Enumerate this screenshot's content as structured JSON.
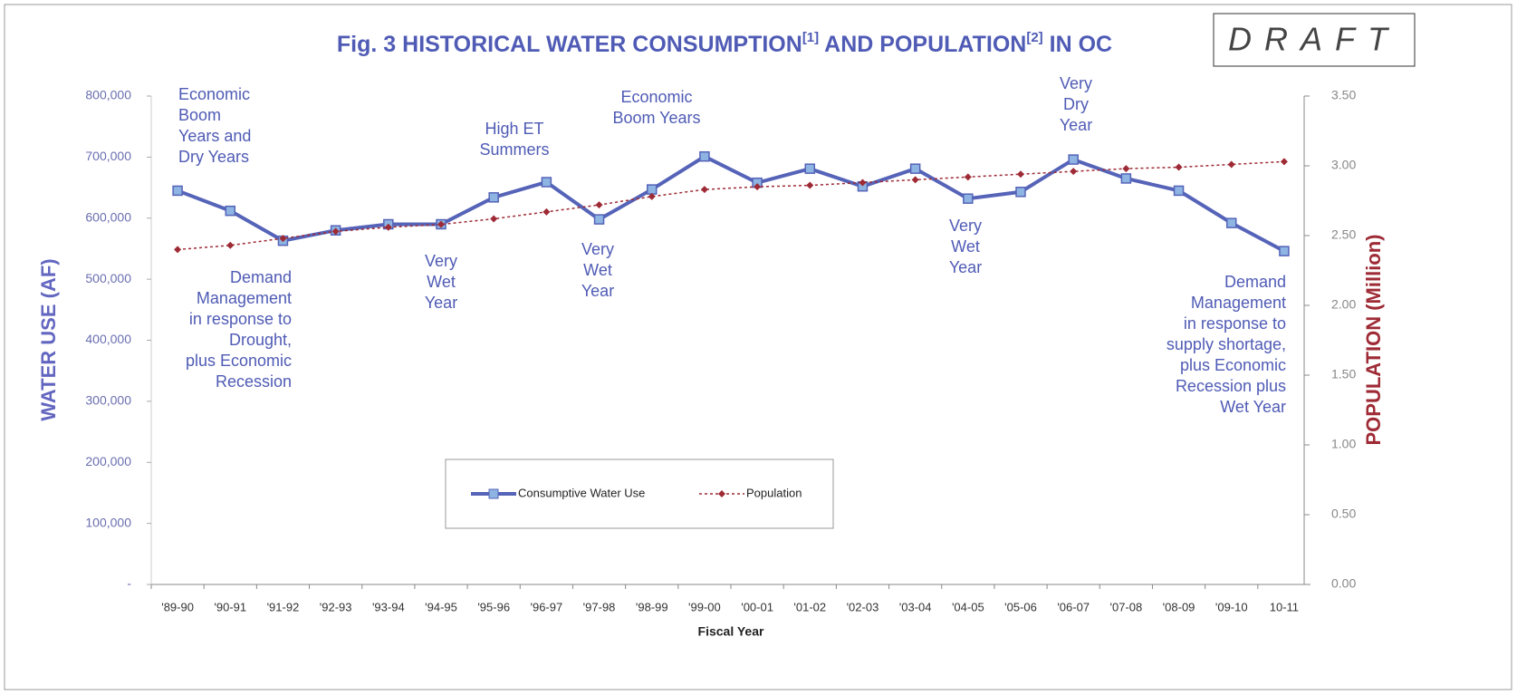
{
  "chart_data": {
    "type": "line",
    "title_parts": [
      "Fig. 3  HISTORICAL WATER CONSUMPTION",
      "[1]",
      " AND POPULATION",
      "[2]",
      " IN OC"
    ],
    "stamp": "DRAFT",
    "x_label": "Fiscal Year",
    "y_label": "WATER USE (AF)",
    "y2_label": "POPULATION (Million)",
    "categories": [
      "'89-90",
      "'90-91",
      "'91-92",
      "'92-93",
      "'93-94",
      "'94-95",
      "'95-96",
      "'96-97",
      "'97-98",
      "'98-99",
      "'99-00",
      "'00-01",
      "'01-02",
      "'02-03",
      "'03-04",
      "'04-05",
      "'05-06",
      "'06-07",
      "'07-08",
      "'08-09",
      "'09-10",
      "10-11"
    ],
    "series": [
      {
        "name": "Consumptive Water Use",
        "color": "#5563b8",
        "marker_color": "#8db4e2",
        "values": [
          645000,
          612000,
          563000,
          580000,
          590000,
          590000,
          634000,
          659000,
          598000,
          647000,
          701000,
          658000,
          681000,
          652000,
          681000,
          632000,
          643000,
          696000,
          665000,
          645000,
          592000,
          546000
        ]
      },
      {
        "name": "Population",
        "color": "#9e2a35",
        "axis": "y2",
        "values": [
          2.4,
          2.43,
          2.48,
          2.53,
          2.56,
          2.58,
          2.62,
          2.67,
          2.72,
          2.78,
          2.83,
          2.85,
          2.86,
          2.88,
          2.9,
          2.92,
          2.94,
          2.96,
          2.98,
          2.99,
          3.01,
          3.03
        ]
      }
    ],
    "ylim": [
      0,
      800000
    ],
    "yticks": [
      {
        "value": 0,
        "label": "-"
      },
      {
        "value": 100000,
        "label": "100,000"
      },
      {
        "value": 200000,
        "label": "200,000"
      },
      {
        "value": 300000,
        "label": "300,000"
      },
      {
        "value": 400000,
        "label": "400,000"
      },
      {
        "value": 500000,
        "label": "500,000"
      },
      {
        "value": 600000,
        "label": "600,000"
      },
      {
        "value": 700000,
        "label": "700,000"
      },
      {
        "value": 800000,
        "label": "800,000"
      }
    ],
    "y2lim": [
      0,
      3.5
    ],
    "y2ticks": [
      {
        "value": 0,
        "label": "0.00"
      },
      {
        "value": 0.5,
        "label": "0.50"
      },
      {
        "value": 1,
        "label": "1.00"
      },
      {
        "value": 1.5,
        "label": "1.50"
      },
      {
        "value": 2,
        "label": "2.00"
      },
      {
        "value": 2.5,
        "label": "2.50"
      },
      {
        "value": 3,
        "label": "3.00"
      },
      {
        "value": 3.5,
        "label": "3.50"
      }
    ],
    "annotations": [
      [
        "Economic",
        "Boom",
        "Years and",
        "Dry Years"
      ],
      [
        "Demand",
        "Management",
        "in response to",
        "Drought,",
        "plus Economic",
        "Recession"
      ],
      [
        "Very",
        "Wet",
        "Year"
      ],
      [
        "High ET",
        "Summers"
      ],
      [
        "Economic",
        "Boom Years"
      ],
      [
        "Very",
        "Wet",
        "Year"
      ],
      [
        "Very",
        "Dry",
        "Year"
      ],
      [
        "Very",
        "Wet",
        "Year"
      ],
      [
        "Demand",
        "Management",
        "in response to",
        "supply shortage,",
        "plus Economic",
        "Recession plus",
        "Wet Year"
      ]
    ]
  }
}
